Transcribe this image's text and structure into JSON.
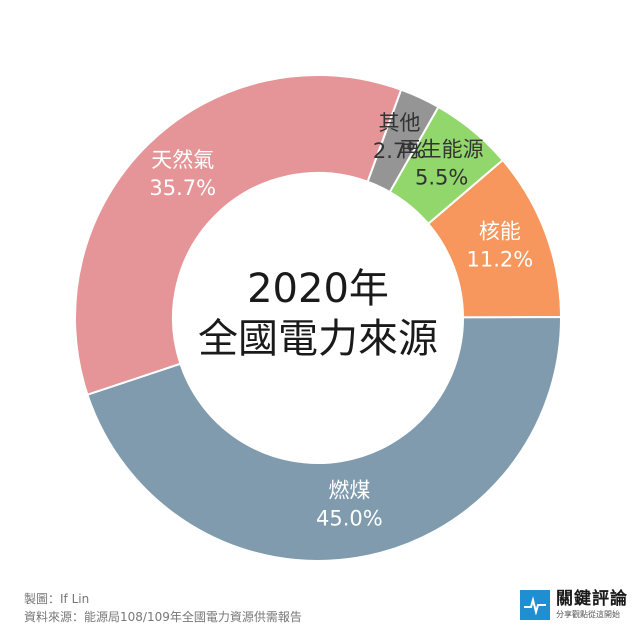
{
  "chart_data": {
    "type": "pie",
    "title": "2020年",
    "subtitle": "全國電力來源",
    "unit": "%",
    "slices": [
      {
        "label": "其他",
        "value": 2.7,
        "value_text": "2.7%",
        "color": "#959595",
        "label_color": "#333333"
      },
      {
        "label": "再生能源",
        "value": 5.5,
        "value_text": "5.5%",
        "color": "#92d76b",
        "label_color": "#333333"
      },
      {
        "label": "核能",
        "value": 11.2,
        "value_text": "11.2%",
        "color": "#f7975e",
        "label_color": "#ffffff"
      },
      {
        "label": "燃煤",
        "value": 45.0,
        "value_text": "45.0%",
        "color": "#7f9bad",
        "label_color": "#ffffff"
      },
      {
        "label": "天然氣",
        "value": 35.7,
        "value_text": "35.7%",
        "color": "#e59598",
        "label_color": "#ffffff"
      }
    ]
  },
  "credits": {
    "author": "製圖：If Lin",
    "source": "資料來源：能源局108/109年全國電力資源供需報告"
  },
  "brand": {
    "name": "關鍵評論",
    "slogan": "分享觀點從這開始",
    "color": "#1f8fd1"
  }
}
